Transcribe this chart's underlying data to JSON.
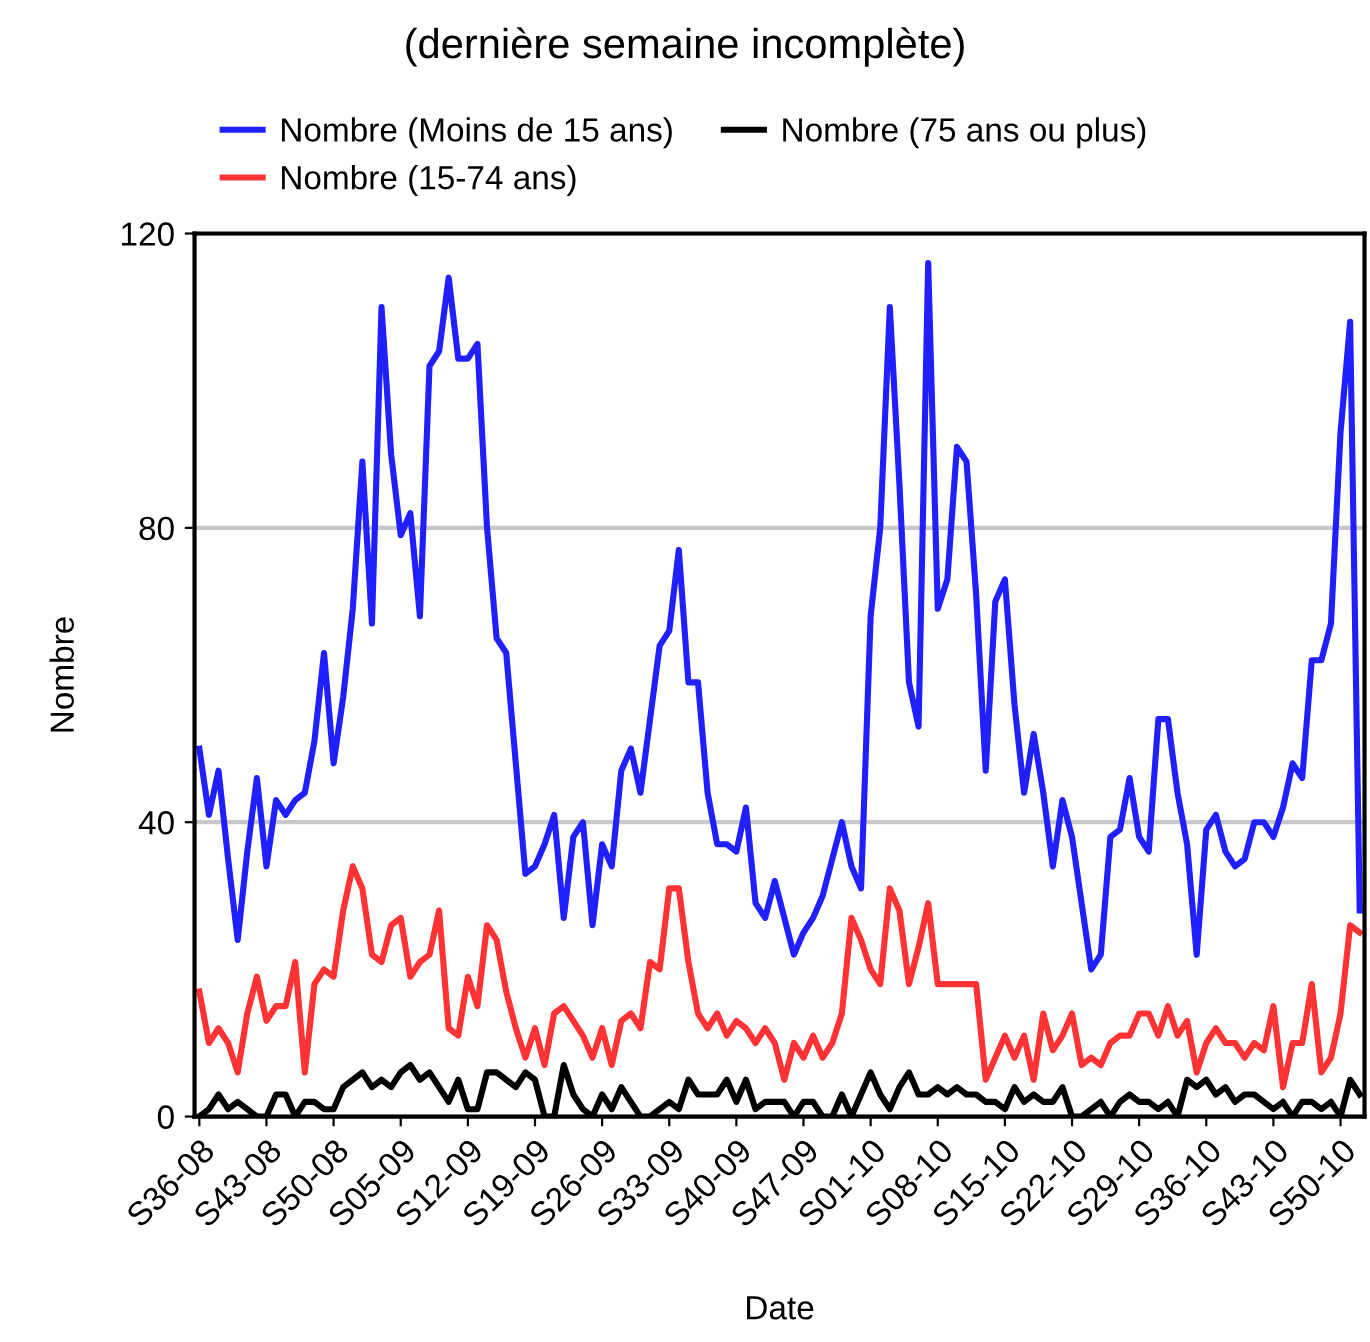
{
  "chart_data": {
    "type": "line",
    "title": "(dernière semaine incomplète)",
    "xlabel": "Date",
    "ylabel": "Nombre",
    "categories": [
      "S36-08",
      null,
      null,
      null,
      null,
      null,
      null,
      "S43-08",
      null,
      null,
      null,
      null,
      null,
      null,
      "S50-08",
      null,
      null,
      null,
      null,
      null,
      null,
      "S05-09",
      null,
      null,
      null,
      null,
      null,
      null,
      "S12-09",
      null,
      null,
      null,
      null,
      null,
      null,
      "S19-09",
      null,
      null,
      null,
      null,
      null,
      null,
      "S26-09",
      null,
      null,
      null,
      null,
      null,
      null,
      "S33-09",
      null,
      null,
      null,
      null,
      null,
      null,
      "S40-09",
      null,
      null,
      null,
      null,
      null,
      null,
      "S47-09",
      null,
      null,
      null,
      null,
      null,
      null,
      "S01-10",
      null,
      null,
      null,
      null,
      null,
      null,
      "S08-10",
      null,
      null,
      null,
      null,
      null,
      null,
      "S15-10",
      null,
      null,
      null,
      null,
      null,
      null,
      "S22-10",
      null,
      null,
      null,
      null,
      null,
      null,
      "S29-10",
      null,
      null,
      null,
      null,
      null,
      null,
      "S36-10",
      null,
      null,
      null,
      null,
      null,
      null,
      "S43-10",
      null,
      null,
      null,
      null,
      null,
      null,
      "S50-10",
      null,
      null
    ],
    "series": [
      {
        "name": "Nombre (Moins de 15 ans)",
        "color": "#2020ff",
        "values": [
          50,
          41,
          47,
          35,
          24,
          36,
          46,
          34,
          43,
          41,
          43,
          44,
          51,
          63,
          48,
          57,
          69,
          89,
          67,
          110,
          90,
          79,
          82,
          68,
          102,
          104,
          114,
          103,
          103,
          105,
          80,
          65,
          63,
          48,
          33,
          34,
          37,
          41,
          27,
          38,
          40,
          26,
          37,
          34,
          47,
          50,
          44,
          54,
          64,
          66,
          77,
          59,
          59,
          44,
          37,
          37,
          36,
          42,
          29,
          27,
          32,
          27,
          22,
          25,
          27,
          30,
          35,
          40,
          34,
          31,
          68,
          80,
          110,
          86,
          59,
          53,
          116,
          69,
          73,
          91,
          89,
          71,
          47,
          70,
          73,
          56,
          44,
          52,
          44,
          34,
          43,
          38,
          29,
          20,
          22,
          38,
          39,
          46,
          38,
          36,
          54,
          54,
          44,
          37,
          22,
          39,
          41,
          36,
          34,
          35,
          40,
          40,
          38,
          42,
          48,
          46,
          62,
          62,
          67,
          93,
          108,
          28
        ]
      },
      {
        "name": "Nombre (15-74 ans)",
        "color": "#ff3333",
        "values": [
          17,
          10,
          12,
          10,
          6,
          14,
          19,
          13,
          15,
          15,
          21,
          6,
          18,
          20,
          19,
          28,
          34,
          31,
          22,
          21,
          26,
          27,
          19,
          21,
          22,
          28,
          12,
          11,
          19,
          15,
          26,
          24,
          17,
          12,
          8,
          12,
          7,
          14,
          15,
          13,
          11,
          8,
          12,
          7,
          13,
          14,
          12,
          21,
          20,
          31,
          31,
          21,
          14,
          12,
          14,
          11,
          13,
          12,
          10,
          12,
          10,
          5,
          10,
          8,
          11,
          8,
          10,
          14,
          27,
          24,
          20,
          18,
          31,
          28,
          18,
          23,
          29,
          18,
          18,
          18,
          18,
          18,
          5,
          8,
          11,
          8,
          11,
          5,
          14,
          9,
          11,
          14,
          7,
          8,
          7,
          10,
          11,
          11,
          14,
          14,
          11,
          15,
          11,
          13,
          6,
          10,
          12,
          10,
          10,
          8,
          10,
          9,
          15,
          4,
          10,
          10,
          18,
          6,
          8,
          14,
          26,
          25
        ]
      },
      {
        "name": "Nombre (75 ans ou plus)",
        "color": "#000000",
        "values": [
          0,
          1,
          3,
          1,
          2,
          1,
          0,
          0,
          3,
          3,
          0,
          2,
          2,
          1,
          1,
          4,
          5,
          6,
          4,
          5,
          4,
          6,
          7,
          5,
          6,
          4,
          2,
          5,
          1,
          1,
          6,
          6,
          5,
          4,
          6,
          5,
          0,
          0,
          7,
          3,
          1,
          0,
          3,
          1,
          4,
          2,
          0,
          0,
          1,
          2,
          1,
          5,
          3,
          3,
          3,
          5,
          2,
          5,
          1,
          2,
          2,
          2,
          0,
          2,
          2,
          0,
          0,
          3,
          0,
          3,
          6,
          3,
          1,
          4,
          6,
          3,
          3,
          4,
          3,
          4,
          3,
          3,
          2,
          2,
          1,
          4,
          2,
          3,
          2,
          2,
          4,
          0,
          0,
          1,
          2,
          0,
          2,
          3,
          2,
          2,
          1,
          2,
          0,
          5,
          4,
          5,
          3,
          4,
          2,
          3,
          3,
          2,
          1,
          2,
          0,
          2,
          2,
          1,
          2,
          0,
          5,
          3
        ]
      }
    ],
    "ylim": [
      0,
      120
    ],
    "yticks": [
      0,
      40,
      80,
      120
    ],
    "grid": "y",
    "legend": "top",
    "line_style": "solid",
    "marker": "none"
  }
}
